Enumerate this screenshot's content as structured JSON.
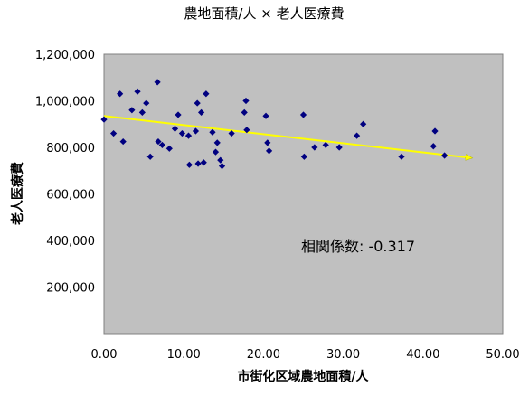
{
  "chart_data": {
    "type": "scatter",
    "title": "農地面積/人 × 老人医療費",
    "xlabel": "市街化区域農地面積/人",
    "ylabel": "老人医療費",
    "xlim": [
      0,
      50
    ],
    "ylim": [
      0,
      1200000
    ],
    "x_ticks": [
      "0.00",
      "10.00",
      "20.00",
      "30.00",
      "40.00",
      "50.00"
    ],
    "y_ticks": [
      "—",
      "200,000",
      "400,000",
      "600,000",
      "800,000",
      "1,000,000",
      "1,200,000"
    ],
    "y_tick_values": [
      0,
      200000,
      400000,
      600000,
      800000,
      1000000,
      1200000
    ],
    "x_tick_values": [
      0,
      10,
      20,
      30,
      40,
      50
    ],
    "grid": false,
    "plot_background": "#c0c0c0",
    "marker_color": "#000080",
    "trend_color": "#ffff00",
    "annotation": "相関係数: -0.317",
    "points": [
      [
        0.0,
        920000
      ],
      [
        1.2,
        860000
      ],
      [
        2.0,
        1030000
      ],
      [
        2.4,
        825000
      ],
      [
        3.5,
        960000
      ],
      [
        4.2,
        1040000
      ],
      [
        4.8,
        950000
      ],
      [
        5.3,
        990000
      ],
      [
        5.8,
        760000
      ],
      [
        6.7,
        1080000
      ],
      [
        6.8,
        825000
      ],
      [
        7.3,
        810000
      ],
      [
        8.2,
        795000
      ],
      [
        8.9,
        880000
      ],
      [
        9.3,
        940000
      ],
      [
        9.8,
        860000
      ],
      [
        10.6,
        850000
      ],
      [
        10.7,
        725000
      ],
      [
        11.5,
        870000
      ],
      [
        11.7,
        990000
      ],
      [
        11.8,
        730000
      ],
      [
        12.2,
        950000
      ],
      [
        12.5,
        735000
      ],
      [
        12.8,
        1030000
      ],
      [
        13.6,
        865000
      ],
      [
        14.0,
        780000
      ],
      [
        14.2,
        820000
      ],
      [
        14.6,
        745000
      ],
      [
        14.8,
        720000
      ],
      [
        16.0,
        860000
      ],
      [
        17.6,
        950000
      ],
      [
        17.8,
        1000000
      ],
      [
        17.9,
        875000
      ],
      [
        20.3,
        935000
      ],
      [
        20.5,
        820000
      ],
      [
        20.7,
        785000
      ],
      [
        25.0,
        940000
      ],
      [
        25.1,
        760000
      ],
      [
        26.4,
        800000
      ],
      [
        27.8,
        810000
      ],
      [
        29.5,
        800000
      ],
      [
        31.7,
        850000
      ],
      [
        32.5,
        900000
      ],
      [
        37.3,
        760000
      ],
      [
        41.3,
        805000
      ],
      [
        41.5,
        870000
      ],
      [
        42.7,
        765000
      ]
    ],
    "trendline": {
      "x": [
        0,
        46
      ],
      "y": [
        935000,
        755000
      ]
    }
  }
}
